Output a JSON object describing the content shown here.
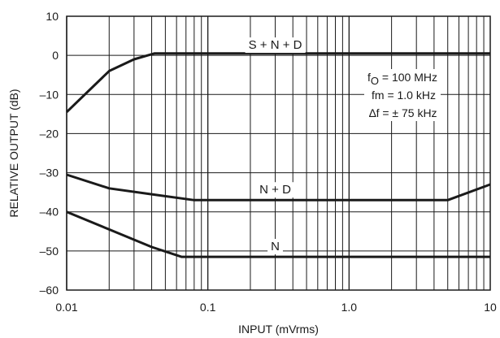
{
  "chart_data": {
    "type": "line",
    "xlabel": "INPUT (mVrms)",
    "ylabel": "RELATIVE OUTPUT (dB)",
    "x_scale": "log",
    "xlim": [
      0.01,
      10
    ],
    "ylim": [
      -60,
      10
    ],
    "x_ticks": [
      {
        "value": 0.01,
        "label": "0.01"
      },
      {
        "value": 0.1,
        "label": "0.1"
      },
      {
        "value": 1,
        "label": "1.0"
      },
      {
        "value": 10,
        "label": "10"
      }
    ],
    "y_ticks": [
      {
        "value": 10,
        "label": "10"
      },
      {
        "value": 0,
        "label": "0"
      },
      {
        "value": -10,
        "label": "–10"
      },
      {
        "value": -20,
        "label": "–20"
      },
      {
        "value": -30,
        "label": "–30"
      },
      {
        "value": -40,
        "label": "–40"
      },
      {
        "value": -50,
        "label": "–50"
      },
      {
        "value": -60,
        "label": "–60"
      }
    ],
    "grid": true,
    "series": [
      {
        "name": "S + N + D",
        "label_at": {
          "x": 0.3,
          "y": 2.5
        },
        "points": [
          [
            0.01,
            -14.5
          ],
          [
            0.02,
            -4
          ],
          [
            0.03,
            -1
          ],
          [
            0.042,
            0.5
          ],
          [
            0.1,
            0.5
          ],
          [
            1,
            0.5
          ],
          [
            10,
            0.5
          ]
        ]
      },
      {
        "name": "N + D",
        "label_at": {
          "x": 0.3,
          "y": -34.5
        },
        "points": [
          [
            0.01,
            -30.5
          ],
          [
            0.02,
            -34
          ],
          [
            0.04,
            -35.5
          ],
          [
            0.08,
            -37
          ],
          [
            1,
            -37
          ],
          [
            5,
            -37
          ],
          [
            10,
            -33
          ]
        ]
      },
      {
        "name": "N",
        "label_at": {
          "x": 0.3,
          "y": -49
        },
        "points": [
          [
            0.01,
            -40
          ],
          [
            0.02,
            -44.5
          ],
          [
            0.04,
            -49
          ],
          [
            0.065,
            -51.5
          ],
          [
            1,
            -51.5
          ],
          [
            10,
            -51.5
          ]
        ]
      }
    ],
    "annotations": {
      "fo_sym": "f",
      "fo_sub": "O",
      "fo_rest": " = 100 MHz",
      "fm": "fm = 1.0 kHz",
      "df": "∆f   = ± 75 kHz"
    }
  }
}
